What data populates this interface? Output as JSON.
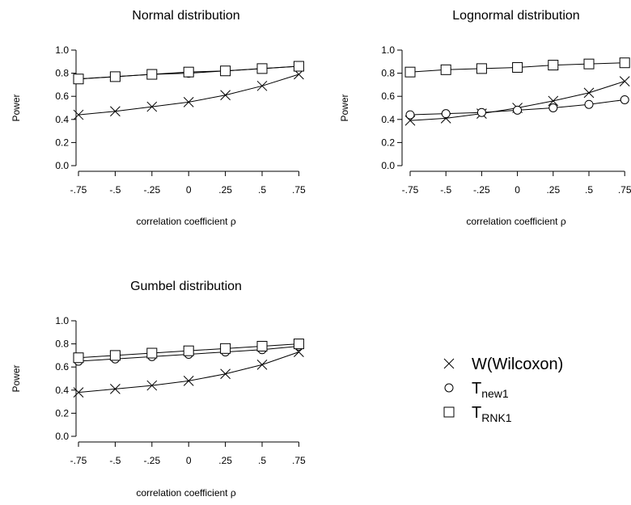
{
  "legend": {
    "items": [
      {
        "name": "W(Wilcoxon)",
        "main": "W(Wilcoxon)",
        "sub": "",
        "marker": "cross"
      },
      {
        "name": "T_new1",
        "main": "T",
        "sub": "new1",
        "marker": "circle"
      },
      {
        "name": "T_RNK1",
        "main": "T",
        "sub": "RNK1",
        "marker": "square"
      }
    ]
  },
  "chart_data": [
    {
      "type": "line",
      "title": "Normal distribution",
      "xlabel": "correlation coefficient ρ",
      "ylabel": "Power",
      "categories": [
        "-.75",
        "-.5",
        "-.25",
        "0",
        ".25",
        ".5",
        ".75"
      ],
      "x": [
        -0.75,
        -0.5,
        -0.25,
        0,
        0.25,
        0.5,
        0.75
      ],
      "ylim": [
        0,
        1
      ],
      "yticks": [
        "0.0",
        "0.2",
        "0.4",
        "0.6",
        "0.8",
        "1.0"
      ],
      "series": [
        {
          "name": "W(Wilcoxon)",
          "marker": "cross",
          "values": [
            0.44,
            0.47,
            0.51,
            0.55,
            0.61,
            0.69,
            0.79
          ]
        },
        {
          "name": "T_new1",
          "marker": "circle",
          "values": [
            0.75,
            0.77,
            0.79,
            0.8,
            0.82,
            0.84,
            0.86
          ]
        },
        {
          "name": "T_RNK1",
          "marker": "square",
          "values": [
            0.75,
            0.77,
            0.79,
            0.81,
            0.82,
            0.84,
            0.86
          ]
        }
      ]
    },
    {
      "type": "line",
      "title": "Lognormal distribution",
      "xlabel": "correlation coefficient ρ",
      "ylabel": "Power",
      "categories": [
        "-.75",
        "-.5",
        "-.25",
        "0",
        ".25",
        ".5",
        ".75"
      ],
      "x": [
        -0.75,
        -0.5,
        -0.25,
        0,
        0.25,
        0.5,
        0.75
      ],
      "ylim": [
        0,
        1
      ],
      "yticks": [
        "0.0",
        "0.2",
        "0.4",
        "0.6",
        "0.8",
        "1.0"
      ],
      "series": [
        {
          "name": "W(Wilcoxon)",
          "marker": "cross",
          "values": [
            0.39,
            0.41,
            0.45,
            0.5,
            0.56,
            0.63,
            0.73
          ]
        },
        {
          "name": "T_new1",
          "marker": "circle",
          "values": [
            0.44,
            0.45,
            0.46,
            0.48,
            0.5,
            0.53,
            0.57
          ]
        },
        {
          "name": "T_RNK1",
          "marker": "square",
          "values": [
            0.81,
            0.83,
            0.84,
            0.85,
            0.87,
            0.88,
            0.89
          ]
        }
      ]
    },
    {
      "type": "line",
      "title": "Gumbel distribution",
      "xlabel": "correlation coefficient ρ",
      "ylabel": "Power",
      "categories": [
        "-.75",
        "-.5",
        "-.25",
        "0",
        ".25",
        ".5",
        ".75"
      ],
      "x": [
        -0.75,
        -0.5,
        -0.25,
        0,
        0.25,
        0.5,
        0.75
      ],
      "ylim": [
        0,
        1
      ],
      "yticks": [
        "0.0",
        "0.2",
        "0.4",
        "0.6",
        "0.8",
        "1.0"
      ],
      "series": [
        {
          "name": "W(Wilcoxon)",
          "marker": "cross",
          "values": [
            0.38,
            0.41,
            0.44,
            0.48,
            0.54,
            0.62,
            0.73
          ]
        },
        {
          "name": "T_new1",
          "marker": "circle",
          "values": [
            0.65,
            0.67,
            0.69,
            0.71,
            0.73,
            0.75,
            0.78
          ]
        },
        {
          "name": "T_RNK1",
          "marker": "square",
          "values": [
            0.68,
            0.7,
            0.72,
            0.74,
            0.76,
            0.78,
            0.8
          ]
        }
      ]
    }
  ]
}
